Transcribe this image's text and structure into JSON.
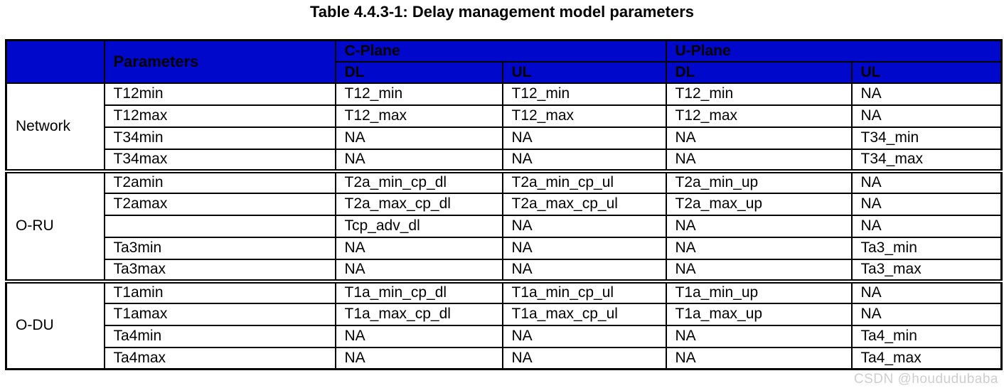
{
  "title": "Table 4.4.3-1: Delay management model parameters",
  "colors": {
    "header_bg": "#0008CC",
    "header_text": "#ffffff",
    "border": "#000000",
    "watermark": "#c9c9c9"
  },
  "table": {
    "header": {
      "corner_label": "",
      "parameters_label": "Parameters",
      "groups": [
        {
          "label": "C-Plane",
          "subcols": [
            "DL",
            "UL"
          ]
        },
        {
          "label": "U-Plane",
          "subcols": [
            "DL",
            "UL"
          ]
        }
      ]
    },
    "sections": [
      {
        "group": "Network",
        "rows": [
          {
            "parameter": "T12min",
            "values": [
              "T12_min",
              "T12_min",
              "T12_min",
              "NA"
            ]
          },
          {
            "parameter": "T12max",
            "values": [
              "T12_max",
              "T12_max",
              "T12_max",
              "NA"
            ]
          },
          {
            "parameter": "T34min",
            "values": [
              "NA",
              "NA",
              "NA",
              "T34_min"
            ]
          },
          {
            "parameter": "T34max",
            "values": [
              "NA",
              "NA",
              "NA",
              "T34_max"
            ]
          }
        ]
      },
      {
        "group": "O-RU",
        "rows": [
          {
            "parameter": "T2amin",
            "values": [
              "T2a_min_cp_dl",
              "T2a_min_cp_ul",
              "T2a_min_up",
              "NA"
            ]
          },
          {
            "parameter": "T2amax",
            "values": [
              "T2a_max_cp_dl",
              "T2a_max_cp_ul",
              "T2a_max_up",
              "NA"
            ]
          },
          {
            "parameter": "",
            "values": [
              "Tcp_adv_dl",
              "NA",
              "NA",
              "NA"
            ]
          },
          {
            "parameter": "Ta3min",
            "values": [
              "NA",
              "NA",
              "NA",
              "Ta3_min"
            ]
          },
          {
            "parameter": "Ta3max",
            "values": [
              "NA",
              "NA",
              "NA",
              "Ta3_max"
            ]
          }
        ]
      },
      {
        "group": "O-DU",
        "rows": [
          {
            "parameter": "T1amin",
            "values": [
              "T1a_min_cp_dl",
              "T1a_min_cp_ul",
              "T1a_min_up",
              "NA"
            ]
          },
          {
            "parameter": "T1amax",
            "values": [
              "T1a_max_cp_dl",
              "T1a_max_cp_ul",
              "T1a_max_up",
              "NA"
            ]
          },
          {
            "parameter": "Ta4min",
            "values": [
              "NA",
              "NA",
              "NA",
              "Ta4_min"
            ]
          },
          {
            "parameter": "Ta4max",
            "values": [
              "NA",
              "NA",
              "NA",
              "Ta4_max"
            ]
          }
        ]
      }
    ]
  },
  "watermark": "CSDN @hoududubaba"
}
